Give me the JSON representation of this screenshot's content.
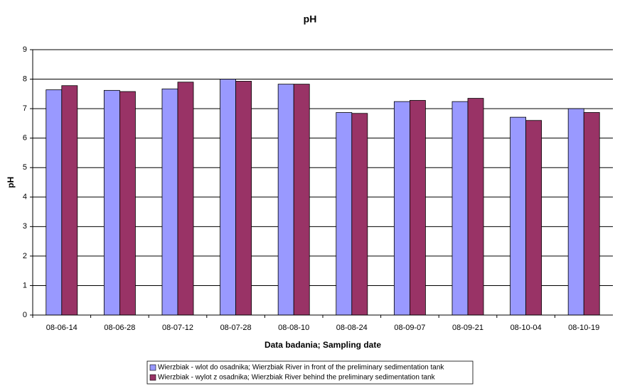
{
  "chart_data": {
    "type": "bar",
    "title": "pH",
    "x_label": "Data badania; Sampling date",
    "y_label": "pH",
    "categories": [
      "08-06-14",
      "08-06-28",
      "08-07-12",
      "08-07-28",
      "08-08-10",
      "08-08-24",
      "08-09-07",
      "08-09-21",
      "08-10-04",
      "08-10-19"
    ],
    "series": [
      {
        "name": "Wierzbiak - wlot do osadnika; Wierzbiak River in front of the preliminary sedimentation tank",
        "color": "#9999ff",
        "values": [
          7.64,
          7.62,
          7.67,
          8.0,
          7.83,
          6.87,
          7.24,
          7.24,
          6.71,
          7.0
        ]
      },
      {
        "name": "Wierzbiak - wylot z osadnika;  Wierzbiak River behind the preliminary sedimentation tank",
        "color": "#993366",
        "values": [
          7.78,
          7.58,
          7.9,
          7.93,
          7.83,
          6.84,
          7.28,
          7.35,
          6.6,
          6.87
        ]
      }
    ],
    "ylim": [
      0,
      9
    ],
    "yticks": [
      0,
      1,
      2,
      3,
      4,
      5,
      6,
      7,
      8,
      9
    ],
    "grid": true,
    "legend": "bottom"
  }
}
